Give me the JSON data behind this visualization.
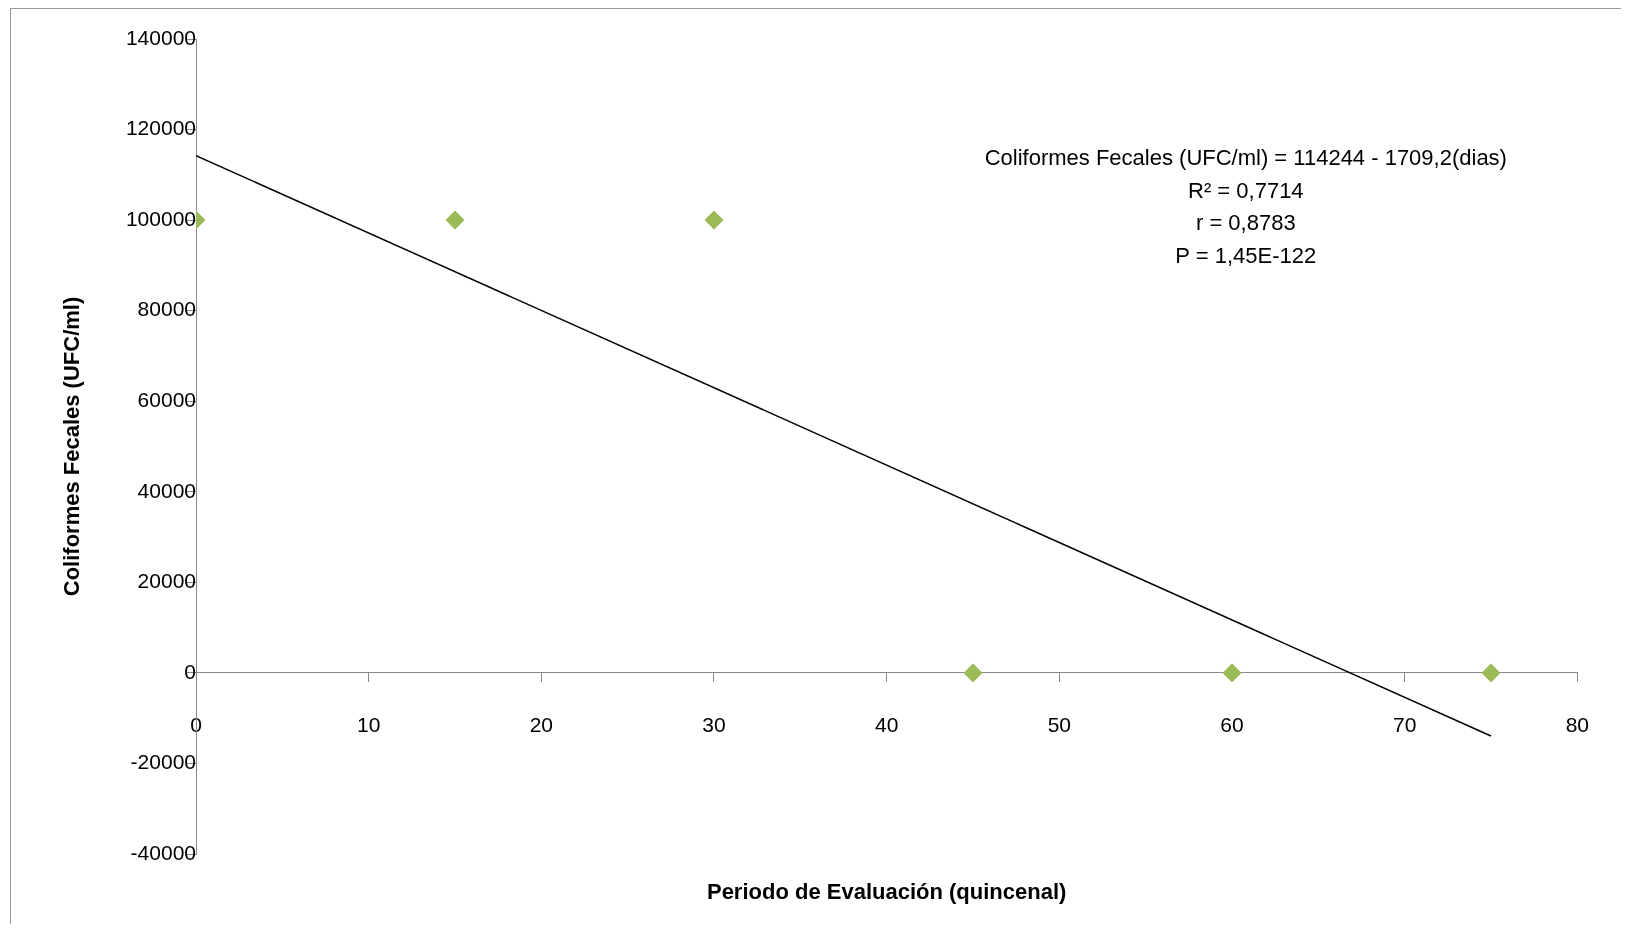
{
  "chart_data": {
    "type": "scatter",
    "xlabel": "Periodo de Evaluación (quincenal)",
    "ylabel": "Coliformes Fecales (UFC/ml)",
    "series": [
      {
        "type": "scatter",
        "color": "#9bbb59",
        "marker": "diamond",
        "x": [
          0,
          15,
          30,
          45,
          60,
          75
        ],
        "values": [
          100000,
          100000,
          100000,
          0,
          0,
          0
        ]
      },
      {
        "type": "line",
        "color": "#000000",
        "marker": "none",
        "line_style": "solid",
        "x": [
          0,
          75
        ],
        "values": [
          114244,
          -13946
        ]
      }
    ],
    "xlim": [
      0,
      80
    ],
    "xticks": [
      0,
      10,
      20,
      30,
      40,
      50,
      60,
      70,
      80
    ],
    "ylim": [
      -40000,
      140000
    ],
    "yticks": [
      -40000,
      -20000,
      0,
      20000,
      40000,
      60000,
      80000,
      100000,
      120000,
      140000
    ],
    "grid": false,
    "legend": false,
    "annotations": [
      "Coliformes Fecales (UFC/ml) = 114244 - 1709,2(dias)",
      "R² = 0,7714",
      "r = 0,8783",
      "P = 1,45E-122"
    ]
  }
}
